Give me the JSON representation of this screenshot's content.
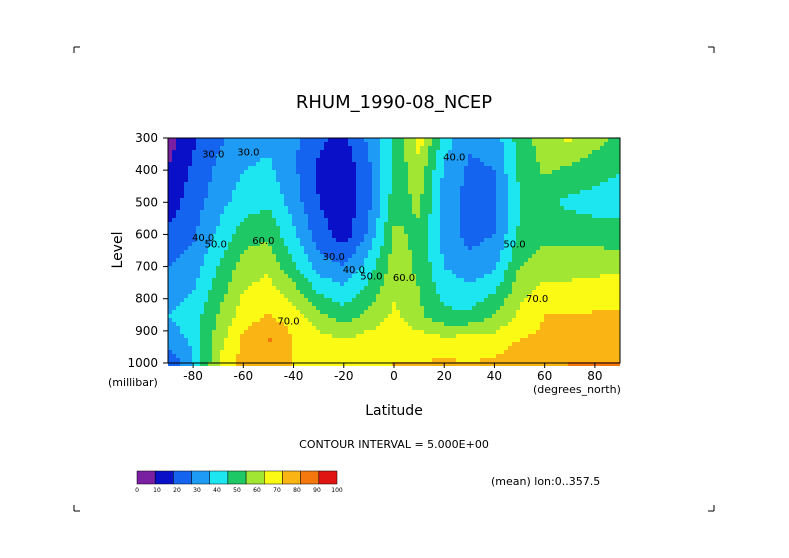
{
  "chart_data": {
    "type": "heatmap",
    "title": "RHUM_1990-08_NCEP",
    "xlabel": "Latitude",
    "ylabel": "Level",
    "x_unit": "(degrees_north)",
    "y_unit": "(millibar)",
    "x_ticks": [
      -80,
      -60,
      -40,
      -20,
      0,
      20,
      40,
      60,
      80
    ],
    "x_tick_labels": [
      "-80",
      "-60",
      "-40",
      "-20",
      "0",
      "20",
      "40",
      "60",
      "80"
    ],
    "y_ticks": [
      300,
      400,
      500,
      600,
      700,
      800,
      900,
      1000
    ],
    "y_tick_labels": [
      "300",
      "400",
      "500",
      "600",
      "700",
      "800",
      "900",
      "1000"
    ],
    "xlim": [
      -90,
      90
    ],
    "ylim": [
      1000,
      300
    ],
    "contour_interval_text": "CONTOUR INTERVAL = 5.000E+00",
    "mean_note": "(mean) lon:0..357.5",
    "colorbar": {
      "ticks": [
        "0",
        "10",
        "20",
        "30",
        "40",
        "50",
        "60",
        "70",
        "80",
        "90",
        "100"
      ],
      "colors": [
        "#7a1fa2",
        "#0a10c8",
        "#1464f0",
        "#1e9bf5",
        "#1ee6f0",
        "#1ec864",
        "#a0e632",
        "#fafa14",
        "#fab414",
        "#f5780f",
        "#e11414"
      ]
    },
    "contour_labels": [
      {
        "text": "30.0",
        "x": -72,
        "y": 360
      },
      {
        "text": "30.0",
        "x": -58,
        "y": 355
      },
      {
        "text": "40.0",
        "x": -76,
        "y": 620
      },
      {
        "text": "50.0",
        "x": -71,
        "y": 640
      },
      {
        "text": "60.0",
        "x": -52,
        "y": 630
      },
      {
        "text": "70.0",
        "x": -42,
        "y": 880
      },
      {
        "text": "30.0",
        "x": -24,
        "y": 680
      },
      {
        "text": "40.0",
        "x": -16,
        "y": 720
      },
      {
        "text": "50.0",
        "x": -9,
        "y": 740
      },
      {
        "text": "60.0",
        "x": 4,
        "y": 745
      },
      {
        "text": "40.0",
        "x": 24,
        "y": 370
      },
      {
        "text": "50.0",
        "x": 48,
        "y": 640
      },
      {
        "text": "70.0",
        "x": 57,
        "y": 810
      }
    ],
    "lats": [
      -90,
      -80,
      -70,
      -60,
      -50,
      -40,
      -30,
      -20,
      -10,
      0,
      10,
      20,
      30,
      40,
      50,
      60,
      70,
      80,
      90
    ],
    "levels": [
      300,
      400,
      500,
      600,
      700,
      850,
      925,
      1000
    ],
    "values": [
      [
        5,
        18,
        28,
        34,
        38,
        32,
        22,
        18,
        32,
        52,
        75,
        45,
        32,
        34,
        55,
        65,
        72,
        64,
        58
      ],
      [
        10,
        22,
        32,
        40,
        42,
        32,
        18,
        12,
        28,
        52,
        67,
        38,
        28,
        30,
        52,
        62,
        58,
        54,
        50
      ],
      [
        15,
        25,
        36,
        45,
        48,
        35,
        20,
        12,
        28,
        55,
        62,
        36,
        26,
        28,
        50,
        52,
        48,
        46,
        46
      ],
      [
        22,
        28,
        42,
        55,
        58,
        42,
        25,
        15,
        32,
        62,
        58,
        36,
        26,
        30,
        52,
        57,
        56,
        55,
        54
      ],
      [
        30,
        35,
        50,
        65,
        68,
        52,
        35,
        30,
        45,
        65,
        58,
        40,
        34,
        38,
        60,
        66,
        66,
        67,
        68
      ],
      [
        40,
        45,
        60,
        75,
        80,
        75,
        62,
        55,
        62,
        72,
        62,
        52,
        52,
        60,
        72,
        80,
        80,
        81,
        82
      ],
      [
        35,
        42,
        65,
        82,
        91,
        80,
        74,
        70,
        74,
        78,
        74,
        72,
        73,
        74,
        80,
        82,
        84,
        84,
        86
      ],
      [
        20,
        40,
        70,
        84,
        87,
        80,
        78,
        76,
        78,
        80,
        80,
        82,
        80,
        82,
        86,
        88,
        90,
        90,
        90
      ]
    ]
  }
}
